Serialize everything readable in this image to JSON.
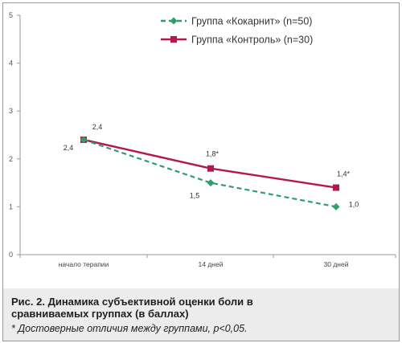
{
  "chart_data": {
    "type": "line",
    "categories": [
      "начало терапии",
      "14 дней",
      "30 дней"
    ],
    "ylim": [
      0,
      5
    ],
    "yticks": [
      "0",
      "1",
      "2",
      "3",
      "4",
      "5"
    ],
    "grid": false,
    "legend_position": "top-right",
    "series": [
      {
        "name": "Группа «Кокарнит» (n=50)",
        "values": [
          2.4,
          1.5,
          1.0
        ],
        "labels": [
          "2,4",
          "1,5",
          "1,0"
        ],
        "color": "#2e9e6b",
        "line_style": "dashed",
        "marker": "diamond"
      },
      {
        "name": "Группа «Контроль» (n=30)",
        "values": [
          2.4,
          1.8,
          1.4
        ],
        "labels": [
          "2,4",
          "1,8*",
          "1,4*"
        ],
        "color": "#b5174b",
        "line_style": "solid",
        "marker": "square"
      }
    ]
  },
  "caption": {
    "title": "Рис. 2. Динамика субъективной оценки боли в сравниваемых группах (в баллах)",
    "note": "* Достоверные отличия между группами, р<0,05."
  }
}
